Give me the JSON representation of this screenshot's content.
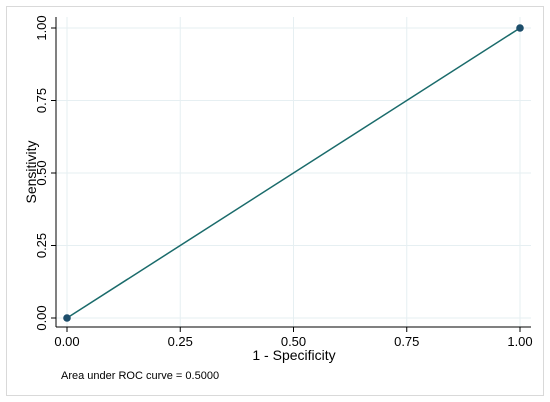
{
  "chart_data": {
    "type": "line",
    "title": "",
    "xlabel": "1 - Specificity",
    "ylabel": "Sensitivity",
    "xlim": [
      0,
      1
    ],
    "ylim": [
      0,
      1
    ],
    "x_ticks": [
      0,
      0.25,
      0.5,
      0.75,
      1
    ],
    "x_tick_labels": [
      "0.00",
      "0.25",
      "0.50",
      "0.75",
      "1.00"
    ],
    "y_ticks": [
      0,
      0.25,
      0.5,
      0.75,
      1
    ],
    "y_tick_labels": [
      "0.00",
      "0.25",
      "0.50",
      "0.75",
      "1.00"
    ],
    "grid": true,
    "series": [
      {
        "x": [
          0,
          1
        ],
        "y": [
          0,
          1
        ],
        "color": "#1a6b6b",
        "marker": "circle",
        "marker_color": "#1d4e6b"
      }
    ],
    "annotation": "Area under ROC curve = 0.5000",
    "colors": {
      "grid": "#e6eff2",
      "axis": "#000000",
      "frame": "#d9d9d9"
    }
  }
}
